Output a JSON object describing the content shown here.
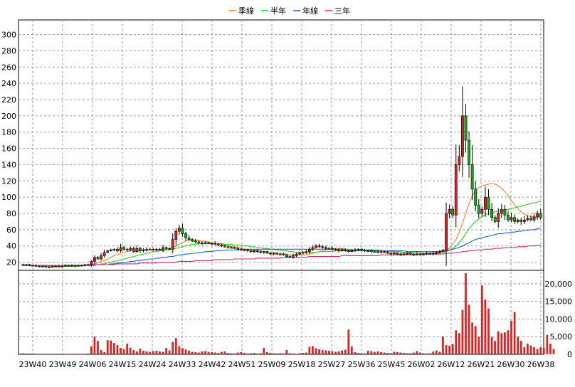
{
  "chart_data": {
    "type": "candlestick",
    "grid": true,
    "legend_placement": "top-center",
    "legend": [
      {
        "name": "季線",
        "color": "#e8862a"
      },
      {
        "name": "半年",
        "color": "#22cc22"
      },
      {
        "name": "年線",
        "color": "#1f5fcc"
      },
      {
        "name": "三年",
        "color": "#d6246e"
      }
    ],
    "x_tick_labels": [
      "23W40",
      "23W49",
      "24W06",
      "24W15",
      "24W24",
      "24W33",
      "24W42",
      "24W51",
      "25W09",
      "25W18",
      "25W27",
      "25W36",
      "25W45",
      "26W02",
      "26W12",
      "26W21",
      "26W30",
      "26W38"
    ],
    "price_axis": {
      "ylim": [
        10,
        318
      ],
      "ticks": [
        20,
        40,
        60,
        80,
        100,
        120,
        140,
        160,
        180,
        200,
        220,
        240,
        260,
        280,
        300
      ]
    },
    "volume_axis": {
      "ylim": [
        0,
        23000
      ],
      "ticks": [
        0,
        5000,
        10000,
        15000,
        20000
      ],
      "tick_labels": [
        "0",
        "5,000",
        "10,000",
        "15,000",
        "20,000"
      ]
    },
    "candle_colors": {
      "up": "#e02020",
      "down": "#10b010"
    },
    "volume_color": "#e02020",
    "closes": [
      17,
      17,
      16,
      16,
      15,
      15,
      15,
      14,
      14,
      15,
      15,
      15,
      15,
      16,
      16,
      15,
      16,
      16,
      16,
      17,
      17,
      21,
      26,
      24,
      28,
      32,
      34,
      35,
      36,
      34,
      38,
      36,
      35,
      37,
      33,
      37,
      34,
      35,
      36,
      36,
      35,
      36,
      35,
      38,
      37,
      36,
      48,
      58,
      62,
      55,
      50,
      48,
      46,
      45,
      44,
      43,
      44,
      43,
      43,
      42,
      41,
      40,
      39,
      38,
      38,
      37,
      36,
      35,
      35,
      34,
      33,
      34,
      33,
      32,
      33,
      31,
      30,
      31,
      30,
      30,
      29,
      27,
      26,
      28,
      30,
      31,
      32,
      33,
      36,
      38,
      40,
      39,
      38,
      37,
      37,
      36,
      35,
      34,
      35,
      34,
      33,
      34,
      35,
      36,
      35,
      34,
      34,
      33,
      33,
      32,
      33,
      32,
      31,
      30,
      31,
      30,
      29,
      30,
      31,
      30,
      29,
      30,
      29,
      30,
      31,
      30,
      31,
      32,
      33,
      35,
      80,
      85,
      78,
      140,
      150,
      200,
      170,
      140,
      110,
      90,
      80,
      85,
      100,
      85,
      75,
      70,
      80,
      85,
      78,
      72,
      75,
      70,
      72,
      70,
      72,
      74,
      72,
      76,
      80,
      75
    ],
    "series": [
      {
        "name": "季線",
        "values": [
          17,
          17,
          17,
          16,
          16,
          16,
          15,
          15,
          15,
          15,
          15,
          15,
          15,
          15,
          15,
          15,
          16,
          16,
          16,
          16,
          17,
          17,
          18,
          19,
          21,
          22,
          24,
          26,
          28,
          29,
          31,
          32,
          33,
          34,
          35,
          35,
          35,
          35,
          35,
          35,
          35,
          35,
          36,
          36,
          36,
          37,
          38,
          40,
          42,
          44,
          46,
          47,
          47,
          47,
          47,
          46,
          46,
          45,
          44,
          43,
          43,
          42,
          41,
          40,
          39,
          39,
          38,
          37,
          36,
          36,
          35,
          35,
          34,
          34,
          33,
          33,
          32,
          32,
          31,
          31,
          30,
          30,
          29,
          29,
          29,
          29,
          29,
          29,
          30,
          31,
          32,
          33,
          34,
          35,
          36,
          36,
          37,
          37,
          37,
          36,
          36,
          36,
          35,
          35,
          35,
          35,
          35,
          35,
          35,
          34,
          34,
          34,
          33,
          33,
          32,
          32,
          31,
          31,
          31,
          30,
          30,
          30,
          30,
          30,
          30,
          30,
          30,
          30,
          31,
          32,
          34,
          37,
          42,
          48,
          56,
          68,
          80,
          92,
          102,
          108,
          112,
          114,
          115,
          116,
          117,
          116,
          114,
          111,
          107,
          102,
          96,
          91,
          86,
          82,
          79,
          77,
          76,
          75,
          75,
          75
        ]
      },
      {
        "name": "半年",
        "values": [
          16,
          16,
          16,
          16,
          16,
          16,
          16,
          16,
          16,
          16,
          15,
          15,
          15,
          15,
          15,
          15,
          15,
          15,
          16,
          16,
          16,
          16,
          17,
          17,
          18,
          18,
          19,
          20,
          21,
          22,
          23,
          24,
          25,
          26,
          27,
          28,
          29,
          30,
          31,
          32,
          33,
          33,
          34,
          34,
          35,
          35,
          36,
          37,
          38,
          39,
          40,
          41,
          42,
          42,
          43,
          43,
          43,
          43,
          43,
          43,
          43,
          43,
          42,
          42,
          42,
          41,
          41,
          41,
          40,
          40,
          39,
          39,
          38,
          38,
          37,
          37,
          36,
          36,
          35,
          35,
          34,
          34,
          33,
          33,
          32,
          32,
          32,
          32,
          32,
          32,
          32,
          33,
          33,
          33,
          33,
          33,
          34,
          34,
          34,
          34,
          34,
          34,
          34,
          34,
          34,
          34,
          34,
          34,
          34,
          34,
          34,
          34,
          33,
          33,
          33,
          33,
          33,
          32,
          32,
          32,
          32,
          32,
          31,
          31,
          31,
          31,
          31,
          31,
          32,
          32,
          33,
          35,
          37,
          40,
          44,
          49,
          55,
          61,
          66,
          70,
          73,
          76,
          78,
          80,
          81,
          82,
          83,
          84,
          84,
          85,
          86,
          87,
          88,
          89,
          90,
          91,
          92,
          93,
          94,
          95
        ]
      },
      {
        "name": "年線",
        "values": [
          16,
          16,
          16,
          16,
          16,
          16,
          16,
          16,
          16,
          16,
          16,
          16,
          16,
          16,
          16,
          16,
          16,
          16,
          16,
          16,
          16,
          16,
          16,
          17,
          17,
          17,
          17,
          18,
          18,
          19,
          19,
          20,
          20,
          21,
          21,
          22,
          22,
          23,
          23,
          24,
          24,
          25,
          25,
          26,
          26,
          27,
          27,
          28,
          29,
          29,
          30,
          30,
          31,
          31,
          32,
          32,
          33,
          33,
          33,
          34,
          34,
          34,
          35,
          35,
          35,
          35,
          35,
          36,
          36,
          36,
          36,
          36,
          36,
          36,
          36,
          36,
          36,
          36,
          36,
          36,
          36,
          36,
          36,
          36,
          36,
          36,
          36,
          36,
          36,
          36,
          36,
          36,
          36,
          36,
          36,
          36,
          36,
          36,
          36,
          35,
          35,
          35,
          35,
          35,
          35,
          35,
          35,
          35,
          35,
          35,
          34,
          34,
          34,
          34,
          34,
          34,
          34,
          34,
          33,
          33,
          33,
          33,
          33,
          33,
          33,
          33,
          33,
          33,
          33,
          34,
          34,
          35,
          36,
          37,
          38,
          40,
          42,
          44,
          46,
          48,
          49,
          50,
          51,
          52,
          53,
          54,
          55,
          55,
          56,
          56,
          57,
          57,
          58,
          58,
          59,
          59,
          60,
          60,
          61,
          62
        ]
      },
      {
        "name": "三年",
        "values": [
          16,
          16,
          16,
          16,
          16,
          16,
          16,
          16,
          16,
          16,
          16,
          16,
          16,
          16,
          16,
          16,
          16,
          16,
          16,
          16,
          17,
          17,
          17,
          17,
          17,
          17,
          17,
          17,
          17,
          18,
          18,
          18,
          18,
          18,
          18,
          18,
          19,
          19,
          19,
          19,
          19,
          19,
          20,
          20,
          20,
          20,
          20,
          20,
          21,
          21,
          21,
          21,
          21,
          22,
          22,
          22,
          22,
          22,
          22,
          23,
          23,
          23,
          23,
          23,
          23,
          24,
          24,
          24,
          24,
          24,
          24,
          24,
          25,
          25,
          25,
          25,
          25,
          25,
          25,
          25,
          26,
          26,
          26,
          26,
          26,
          26,
          26,
          26,
          27,
          27,
          27,
          27,
          27,
          27,
          27,
          27,
          27,
          27,
          28,
          28,
          28,
          28,
          28,
          28,
          28,
          28,
          28,
          28,
          28,
          28,
          29,
          29,
          29,
          29,
          29,
          29,
          29,
          29,
          29,
          29,
          29,
          29,
          30,
          30,
          30,
          30,
          30,
          30,
          30,
          30,
          31,
          31,
          31,
          32,
          32,
          33,
          33,
          34,
          34,
          35,
          35,
          35,
          36,
          36,
          36,
          37,
          37,
          37,
          38,
          38,
          38,
          38,
          39,
          39,
          39,
          40,
          40,
          40,
          41,
          41
        ]
      }
    ],
    "volumes": [
      300,
      200,
      200,
      150,
      100,
      80,
      100,
      60,
      80,
      100,
      60,
      80,
      120,
      60,
      100,
      60,
      80,
      100,
      60,
      120,
      200,
      2200,
      5000,
      3800,
      1200,
      600,
      4000,
      3900,
      3200,
      2600,
      1800,
      1400,
      3000,
      1900,
      1200,
      800,
      1600,
      1000,
      800,
      700,
      900,
      1000,
      800,
      700,
      1800,
      1100,
      3500,
      4600,
      2300,
      1800,
      1300,
      1000,
      700,
      600,
      500,
      800,
      900,
      700,
      600,
      500,
      400,
      700,
      800,
      400,
      300,
      200,
      500,
      600,
      400,
      200,
      300,
      400,
      200,
      300,
      1800,
      600,
      400,
      300,
      200,
      300,
      200,
      1200,
      300,
      200,
      100,
      300,
      400,
      500,
      2100,
      2300,
      1700,
      1400,
      1200,
      1100,
      1000,
      900,
      700,
      800,
      1100,
      1300,
      7000,
      2200,
      600,
      400,
      300,
      200,
      1000,
      900,
      700,
      800,
      600,
      500,
      400,
      300,
      700,
      600,
      500,
      400,
      300,
      300,
      500,
      900,
      500,
      300,
      200,
      300,
      800,
      1100,
      700,
      5000,
      2600,
      2400,
      2900,
      6800,
      6000,
      12600,
      23000,
      14000,
      9000,
      8000,
      5000,
      19500,
      15500,
      13000,
      5000,
      3800,
      6500,
      6000,
      6200,
      6800,
      9500,
      12000,
      5000,
      3800,
      2000,
      3000,
      2500,
      2000,
      1500,
      2000,
      1800,
      5500,
      3000,
      1500
    ]
  }
}
